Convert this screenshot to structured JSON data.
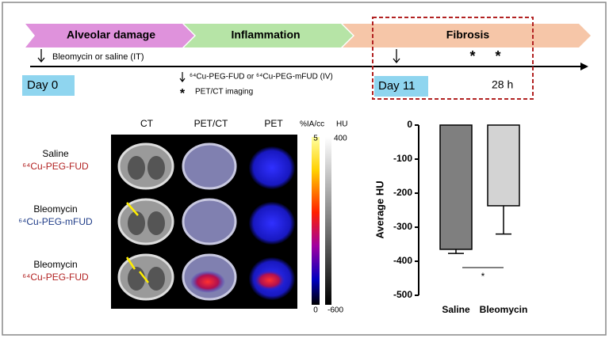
{
  "timeline": {
    "phases": [
      "Alveolar damage",
      "Inflammation",
      "Fibrosis"
    ],
    "dosing": "Bleomycin or saline (IT)",
    "start": "Day 0",
    "scan_day": "Day 11",
    "scan_time": "28 h",
    "legend": {
      "arrow": "⁶⁴Cu-PEG-FUD or ⁶⁴Cu-PEG-mFUD (IV)",
      "star_symbol": "*",
      "star": "PET/CT imaging"
    }
  },
  "images": {
    "columns": [
      "CT",
      "PET/CT",
      "PET"
    ],
    "rows": [
      [
        "Saline",
        "⁶⁴Cu-PEG-FUD"
      ],
      [
        "Bleomycin",
        "⁶⁴Cu-PEG-mFUD"
      ],
      [
        "Bleomycin",
        "⁶⁴Cu-PEG-FUD"
      ]
    ],
    "colorbar": {
      "pet_unit": "%IA/cc",
      "ct_unit": "HU",
      "pet_max": 5,
      "ct_max": 400,
      "pet_min": 0,
      "ct_min": -600
    }
  },
  "chart_data": {
    "type": "bar",
    "ylabel": "Average HU",
    "categories": [
      "Saline",
      "Bleomycin"
    ],
    "values": [
      -365,
      -237
    ],
    "errors": [
      12,
      83
    ],
    "colors": [
      "#7f7f7f",
      "#d3d3d3"
    ],
    "ylim": [
      -500,
      0
    ],
    "yticks": [
      0,
      -100,
      -200,
      -300,
      -400,
      -500
    ],
    "significance": "*"
  }
}
